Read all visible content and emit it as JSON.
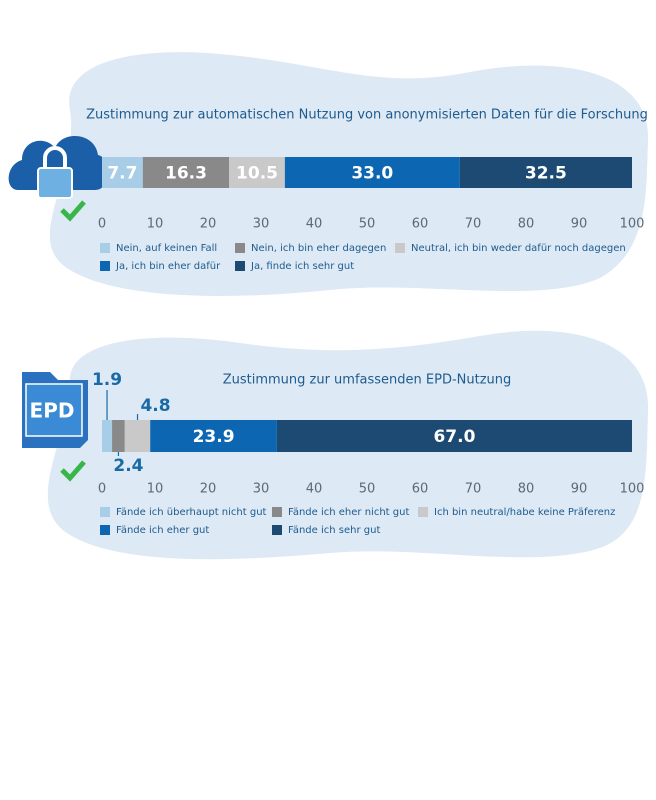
{
  "chart_data": [
    {
      "type": "stacked-bar",
      "title": "Zustimmung zur automatischen Nutzung von anonymisierten Daten für die Forschung",
      "xlim": [
        0,
        100
      ],
      "xticks": [
        0,
        10,
        20,
        30,
        40,
        50,
        60,
        70,
        80,
        90,
        100
      ],
      "series": [
        {
          "name": "Nein, auf keinen Fall",
          "color": "#a8cee7",
          "values": [
            7.7
          ]
        },
        {
          "name": "Nein, ich bin eher dagegen",
          "color": "#898989",
          "values": [
            16.3
          ]
        },
        {
          "name": "Neutral, ich bin weder dafür noch dagegen",
          "color": "#c9c9c9",
          "values": [
            10.5
          ]
        },
        {
          "name": "Ja, ich bin eher dafür",
          "color": "#0c66b1",
          "values": [
            33
          ],
          "value_labels": [
            "33.0"
          ]
        },
        {
          "name": "Ja, finde ich sehr gut",
          "color": "#1d4a72",
          "values": [
            32.5
          ]
        }
      ]
    },
    {
      "type": "stacked-bar",
      "title": "Zustimmung zur umfassenden EPD-Nutzung",
      "xlim": [
        0,
        100
      ],
      "xticks": [
        0,
        10,
        20,
        30,
        40,
        50,
        60,
        70,
        80,
        90,
        100
      ],
      "series": [
        {
          "name": "Fände ich überhaupt nicht gut",
          "color": "#a8cee7",
          "values": [
            1.9
          ]
        },
        {
          "name": "Fände ich eher nicht gut",
          "color": "#898989",
          "values": [
            2.4
          ]
        },
        {
          "name": "Ich bin neutral/habe keine Präferenz",
          "color": "#c9c9c9",
          "values": [
            4.8
          ]
        },
        {
          "name": "Fände ich eher gut",
          "color": "#0c66b1",
          "values": [
            23.9
          ]
        },
        {
          "name": "Fände ich sehr gut",
          "color": "#1d4a72",
          "values": [
            67
          ],
          "value_labels": [
            "67.0"
          ]
        }
      ]
    }
  ]
}
